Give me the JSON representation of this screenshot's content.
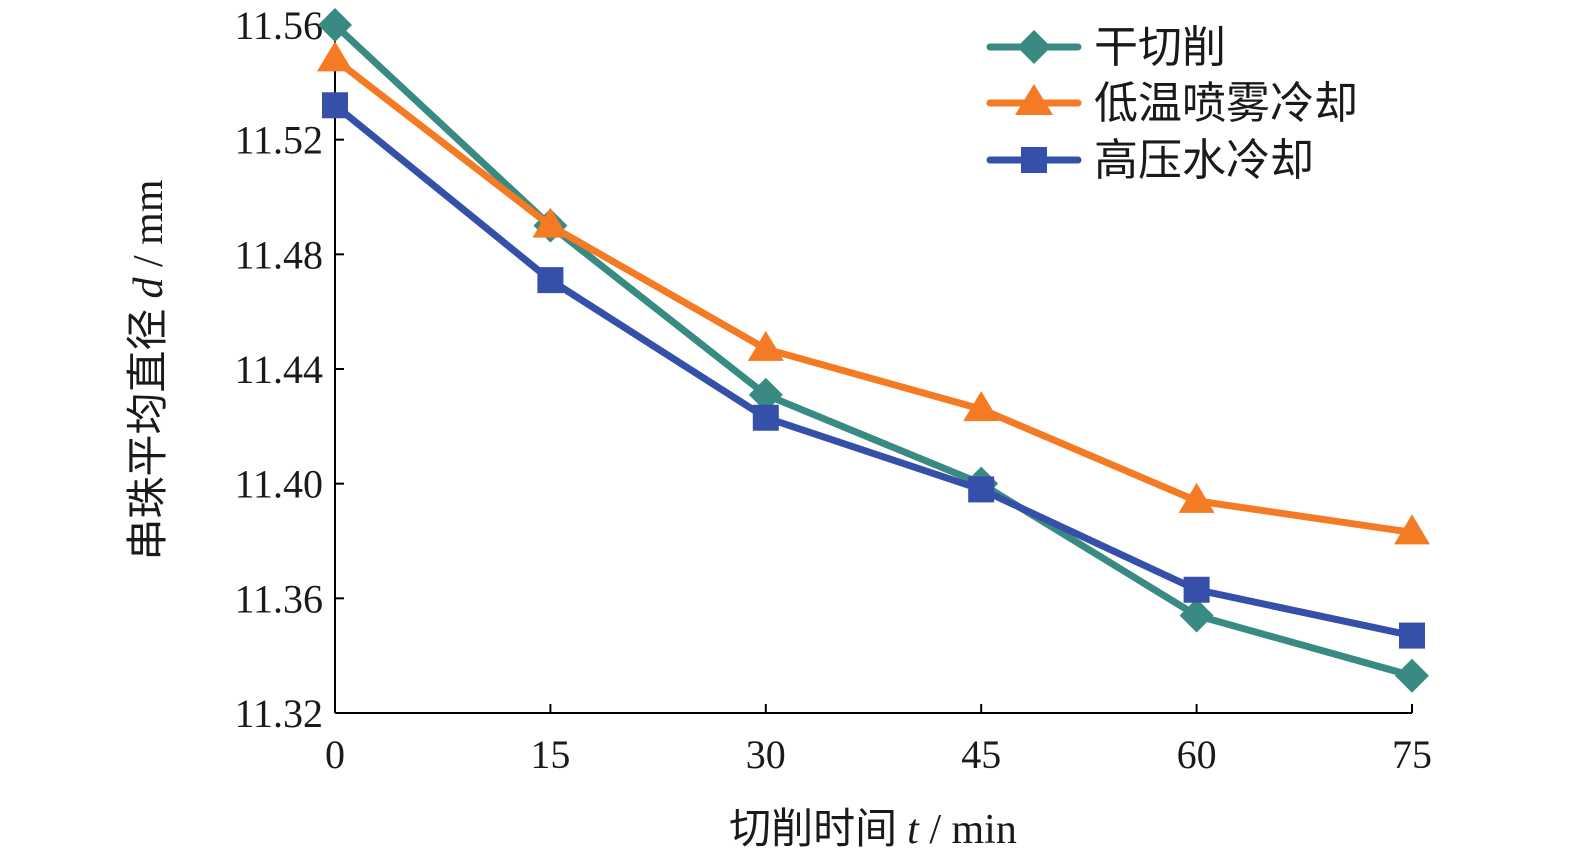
{
  "chart_data": {
    "type": "line",
    "title": "",
    "xlabel": "切削时间",
    "xlabel_var": "t",
    "xlabel_unit": " / min",
    "ylabel": "串珠平均直径",
    "ylabel_var": "d",
    "ylabel_unit": " / mm",
    "x": [
      0,
      15,
      30,
      45,
      60,
      75
    ],
    "xlim": [
      0,
      75
    ],
    "ylim": [
      11.32,
      11.56
    ],
    "xticks": [
      "0",
      "15",
      "30",
      "45",
      "60",
      "75"
    ],
    "yticks": [
      "11.32",
      "11.36",
      "11.40",
      "11.44",
      "11.48",
      "11.52",
      "11.56"
    ],
    "grid": false,
    "legend_position": "top-right",
    "series": [
      {
        "name": "干切削",
        "color": "#3a8a84",
        "marker": "diamond",
        "values": [
          11.56,
          11.49,
          11.431,
          11.4,
          11.354,
          11.333
        ]
      },
      {
        "name": "低温喷雾冷却",
        "color": "#f47a24",
        "marker": "triangle",
        "values": [
          11.548,
          11.49,
          11.447,
          11.426,
          11.394,
          11.383
        ]
      },
      {
        "name": "高压水冷却",
        "color": "#3550a8",
        "marker": "square",
        "values": [
          11.532,
          11.471,
          11.423,
          11.398,
          11.363,
          11.347
        ]
      }
    ]
  }
}
